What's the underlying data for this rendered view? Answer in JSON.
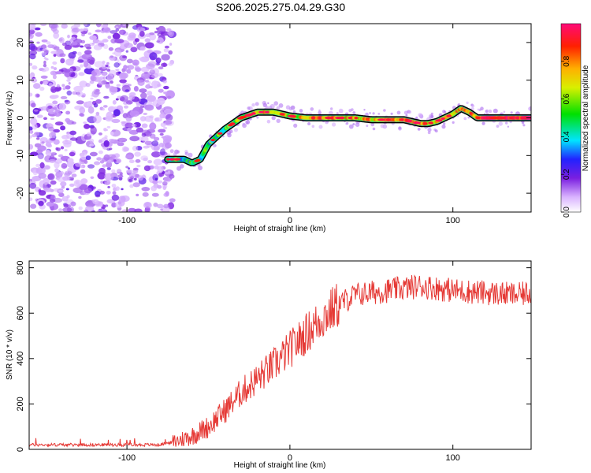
{
  "title": "S206.2025.275.04.29.G30",
  "colors": {
    "snr_line": "#e53935",
    "track_edge": "#000000",
    "noise": "#8a2be2"
  },
  "colorbar": {
    "label": "Normalized spectral amplitude",
    "ticks": [
      "0.0",
      "0.2",
      "0.4",
      "0.6",
      "0.8"
    ],
    "tick_values": [
      0.0,
      0.2,
      0.4,
      0.6,
      0.8
    ],
    "range": [
      0,
      1
    ]
  },
  "chart_data": [
    {
      "type": "heatmap",
      "name": "spectrogram",
      "xlabel": "Height of straight line (km)",
      "ylabel": "Frequency (Hz)",
      "xlim": [
        -160,
        148
      ],
      "ylim": [
        -25,
        25
      ],
      "xticks": [
        -100,
        0,
        100
      ],
      "xtick_labels": [
        "-100",
        "0",
        "100"
      ],
      "yticks": [
        -20,
        -10,
        0,
        10,
        20
      ],
      "ytick_labels": [
        "-20",
        "-10",
        "0",
        "10",
        "20"
      ],
      "noise_region_x": [
        -160,
        -75
      ],
      "track": {
        "x": [
          -75,
          -70,
          -65,
          -60,
          -55,
          -50,
          -40,
          -30,
          -20,
          -10,
          0,
          10,
          20,
          30,
          40,
          50,
          60,
          70,
          75,
          80,
          85,
          90,
          95,
          100,
          105,
          110,
          115,
          120,
          130,
          140,
          148
        ],
        "freq": [
          -11,
          -11,
          -11,
          -12,
          -11,
          -7,
          -3,
          0,
          1.5,
          1.5,
          0.5,
          0,
          0,
          0,
          0,
          -0.5,
          -0.5,
          -0.5,
          -1,
          -1.5,
          -1.5,
          -1,
          0,
          1,
          2.5,
          1.5,
          0,
          0,
          0,
          0,
          0
        ],
        "amp": [
          0.45,
          0.5,
          0.4,
          0.4,
          0.5,
          0.45,
          0.55,
          0.6,
          0.75,
          0.7,
          0.65,
          0.7,
          0.8,
          0.75,
          0.7,
          0.75,
          0.8,
          0.85,
          0.8,
          0.8,
          0.75,
          0.7,
          0.7,
          0.75,
          0.8,
          0.8,
          0.85,
          0.95,
          0.95,
          0.95,
          0.95
        ]
      }
    },
    {
      "type": "line",
      "name": "snr",
      "xlabel": "Height of straight line (km)",
      "ylabel": "SNR (10 * v/v)",
      "xlim": [
        -160,
        148
      ],
      "ylim": [
        0,
        830
      ],
      "xticks": [
        -100,
        0,
        100
      ],
      "xtick_labels": [
        "-100",
        "0",
        "100"
      ],
      "yticks": [
        0,
        200,
        400,
        600,
        800
      ],
      "ytick_labels": [
        "0",
        "200",
        "400",
        "600",
        "800"
      ],
      "trend": {
        "x": [
          -160,
          -80,
          -70,
          -60,
          -50,
          -40,
          -30,
          -20,
          -10,
          0,
          10,
          20,
          30,
          40,
          60,
          80,
          100,
          120,
          140,
          148
        ],
        "y": [
          20,
          20,
          35,
          60,
          100,
          170,
          250,
          310,
          370,
          440,
          510,
          580,
          640,
          680,
          700,
          720,
          700,
          690,
          680,
          690
        ]
      }
    }
  ]
}
